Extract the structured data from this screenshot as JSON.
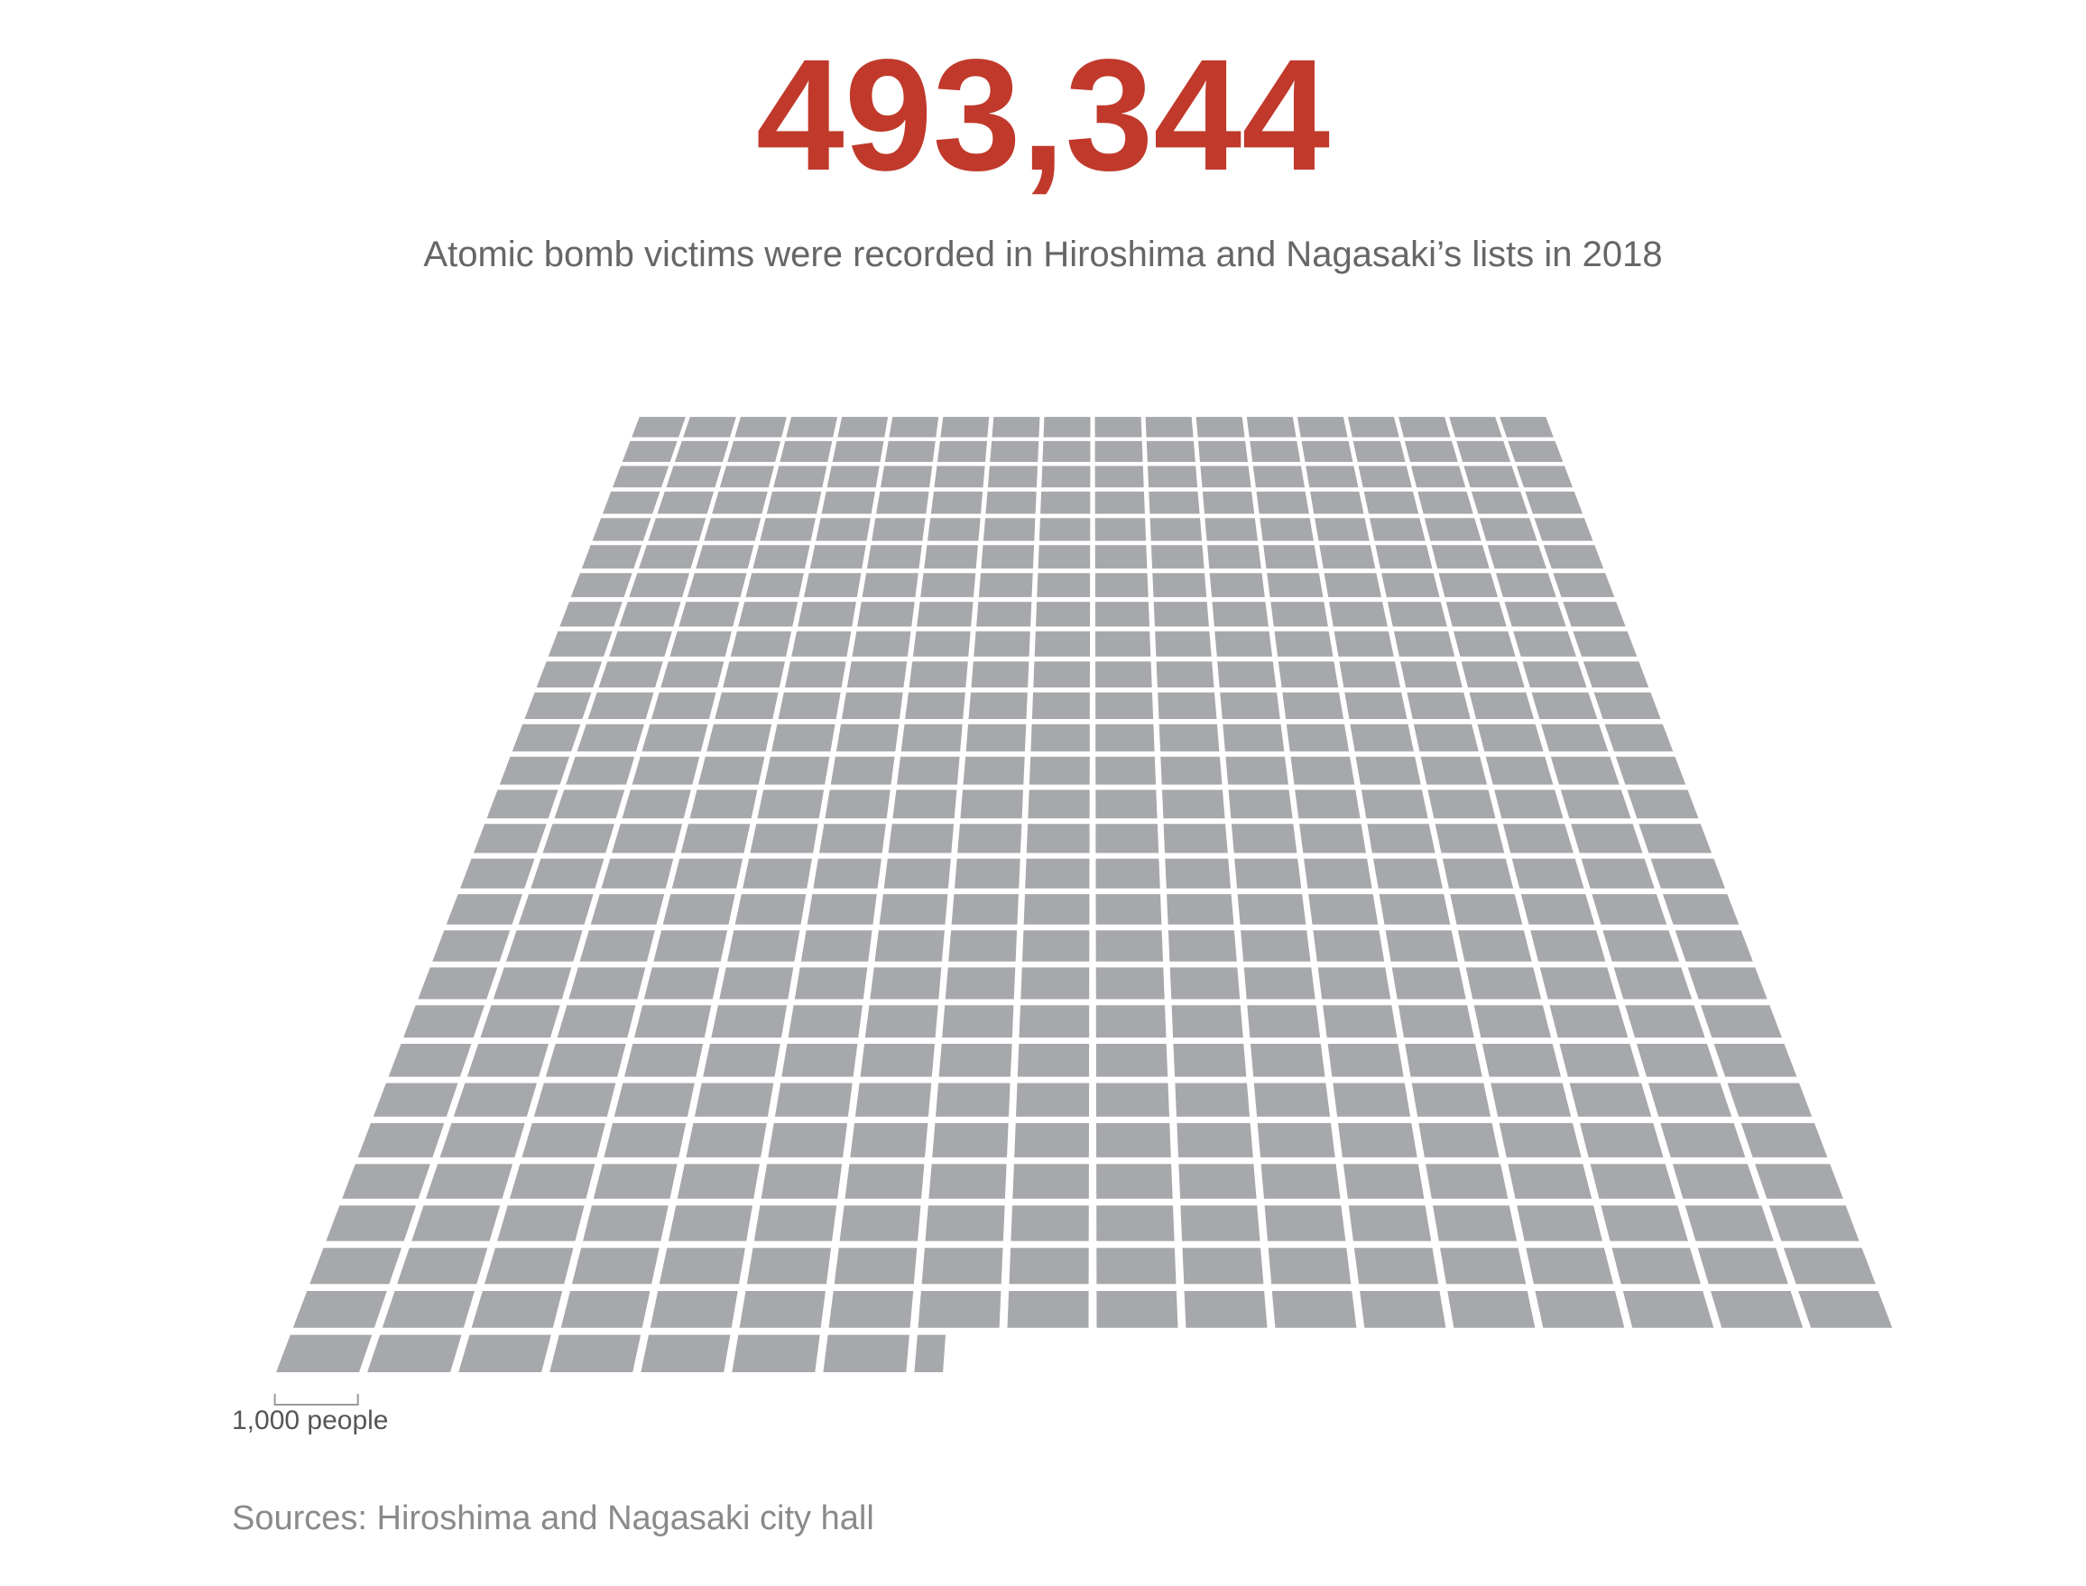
{
  "headline": {
    "number": "493,344"
  },
  "subtitle": "Atomic bomb victims were recorded in Hiroshima and Nagasaki’s lists in 2018",
  "legend": {
    "unit_label": "1,000 people"
  },
  "footer": {
    "source": "Sources: Hiroshima and Nagasaki city hall"
  },
  "colors": {
    "number": "#c0392b",
    "block": "#a7a8ab",
    "text": "#666666",
    "source": "#8a8a8a"
  },
  "chart_data": {
    "type": "waffle",
    "total": 493344,
    "unit_value": 1000,
    "columns": 18,
    "full_rows": 27,
    "last_row_units": 7.344
  }
}
